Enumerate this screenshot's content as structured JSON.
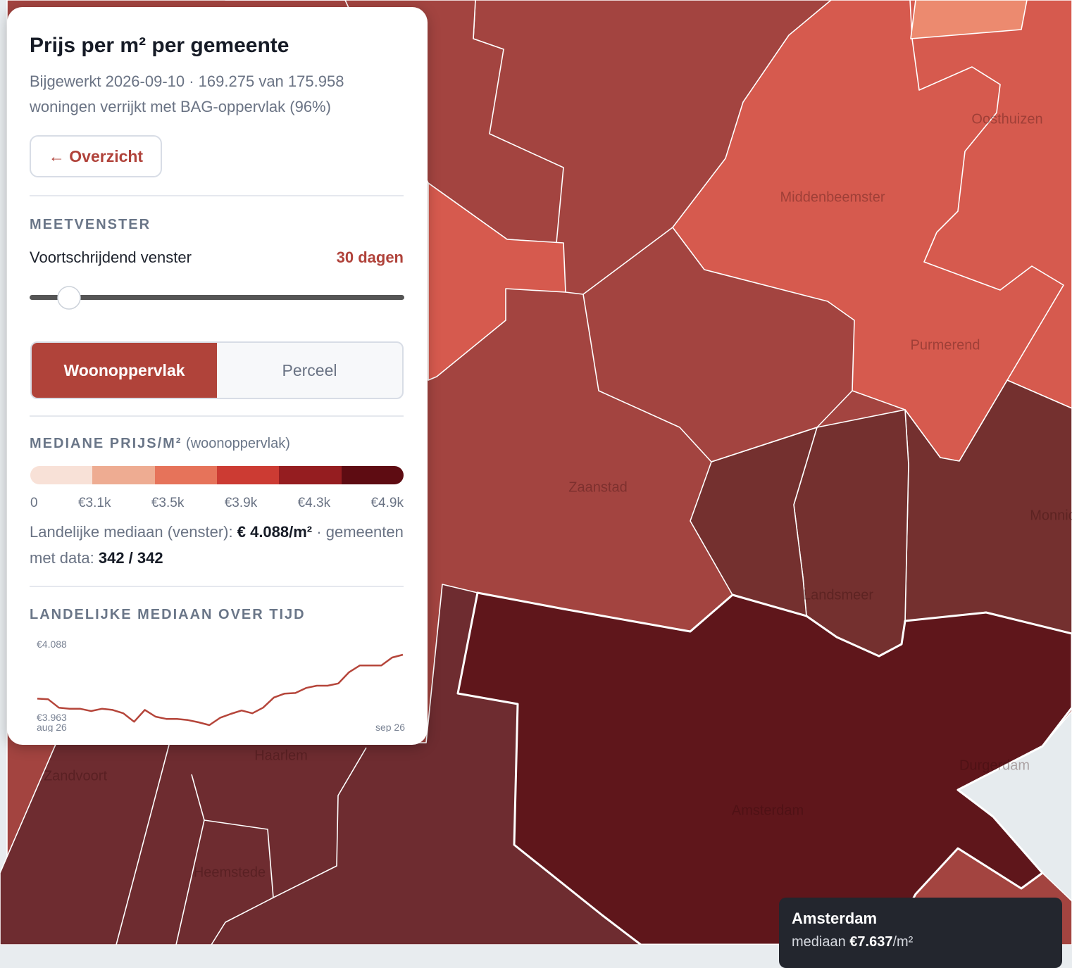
{
  "panel": {
    "title": "Prijs per m² per gemeente",
    "subtitle": "Bijgewerkt 2026-09-10 · 169.275 van 175.958 woningen verrijkt met BAG-oppervlak (96%)",
    "back_button": "← Overzicht",
    "window": {
      "heading": "MEETVENSTER",
      "label": "Voortschrijdend venster",
      "value": "30 dagen"
    },
    "toggle": {
      "options": [
        "Woonoppervlak",
        "Perceel"
      ],
      "active": 0
    },
    "legend": {
      "heading": "MEDIANE PRIJS/M²",
      "note": "(woonoppervlak)",
      "colors": [
        "#f8e1d7",
        "#eeac92",
        "#e6735a",
        "#cc3b33",
        "#951d20",
        "#5e0c12"
      ],
      "ticks": [
        0,
        {
          "value": 3100,
          "label": "€3.1k"
        },
        {
          "value": 3500,
          "label": "€3.5k"
        },
        {
          "value": 3900,
          "label": "€3.9k"
        },
        {
          "value": 4300,
          "label": "€4.3k"
        },
        {
          "value": 4900,
          "label": "€4.9k"
        }
      ]
    },
    "stats": {
      "median_label": "Landelijke mediaan (venster):",
      "median_value": "€ 4.088/m²",
      "separator": "·",
      "count_label": "gemeenten met data:",
      "count_value": "342 / 342"
    }
  },
  "chart_data": {
    "type": "line",
    "title": "LANDELIJKE MEDIAAN OVER TIJD",
    "categories": [
      "aug 26",
      null,
      null,
      null,
      null,
      null,
      null,
      null,
      null,
      null,
      null,
      null,
      null,
      null,
      null,
      null,
      null,
      null,
      null,
      null,
      null,
      null,
      null,
      null,
      null,
      null,
      null,
      null,
      null,
      null,
      null,
      null,
      null,
      null,
      "sep 26"
    ],
    "series": [
      {
        "color": "#b5453a",
        "values": [
          4010,
          4009,
          3994,
          3992,
          3992,
          3988,
          3992,
          3990,
          3984,
          3969,
          3990,
          3978,
          3974,
          3974,
          3972,
          3968,
          3963,
          3976,
          3983,
          3989,
          3984,
          3994,
          4012,
          4019,
          4020,
          4029,
          4033,
          4033,
          4037,
          4057,
          4069,
          4069,
          4069,
          4083,
          4088
        ]
      }
    ],
    "ylim": [
      3963,
      4088
    ],
    "yticks": [
      {
        "value": 4088,
        "label": "€4.088"
      },
      {
        "value": 3963,
        "label": "€3.963"
      }
    ]
  },
  "map": {
    "places": [
      "Oosthuizen",
      "Middenbeemster",
      "Purmerend",
      "Zaanstad",
      "Landsmeer",
      "Monnickendam",
      "Amsterdam",
      "Durgerdam",
      "Haarlem",
      "Zandvoort",
      "Heemstede"
    ],
    "tooltip": {
      "name": "Amsterdam",
      "label": "mediaan",
      "value": "€7.637",
      "unit": "/m²"
    }
  }
}
